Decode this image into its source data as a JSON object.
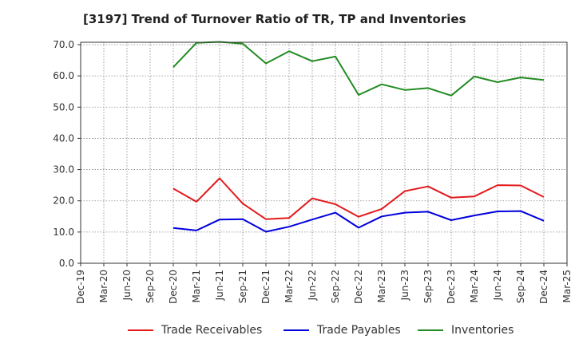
{
  "title": "[3197]  Trend of Turnover Ratio of TR, TP and Inventories",
  "chart_data": {
    "type": "line",
    "title": "[3197]  Trend of Turnover Ratio of TR, TP and Inventories",
    "xlabel": "",
    "ylabel": "",
    "ylim": [
      0,
      70
    ],
    "yticks": [
      "0.0",
      "10.0",
      "20.0",
      "30.0",
      "40.0",
      "50.0",
      "60.0",
      "70.0"
    ],
    "xticks": [
      "Dec-19",
      "Mar-20",
      "Jun-20",
      "Sep-20",
      "Dec-20",
      "Mar-21",
      "Jun-21",
      "Sep-21",
      "Dec-21",
      "Mar-22",
      "Jun-22",
      "Sep-22",
      "Dec-22",
      "Mar-23",
      "Jun-23",
      "Sep-23",
      "Dec-23",
      "Mar-24",
      "Jun-24",
      "Sep-24",
      "Dec-24",
      "Mar-25"
    ],
    "x": [
      "Dec-20",
      "Mar-21",
      "Jun-21",
      "Sep-21",
      "Dec-21",
      "Mar-22",
      "Jun-22",
      "Sep-22",
      "Dec-22",
      "Mar-23",
      "Jun-23",
      "Sep-23",
      "Dec-23",
      "Mar-24",
      "Jun-24",
      "Sep-24",
      "Dec-24"
    ],
    "grid": true,
    "legend_position": "bottom",
    "series": [
      {
        "name": "Trade Receivables",
        "color": "#e31a1c",
        "values": [
          23.9,
          19.7,
          27.2,
          19.1,
          14.1,
          14.5,
          20.8,
          18.9,
          14.9,
          17.4,
          23.1,
          24.6,
          21.0,
          21.4,
          25.0,
          24.9,
          21.2
        ]
      },
      {
        "name": "Trade Payables",
        "color": "#0000dd",
        "values": [
          11.3,
          10.5,
          14.0,
          14.1,
          10.1,
          11.7,
          14.0,
          16.2,
          11.4,
          15.0,
          16.2,
          16.5,
          13.8,
          15.3,
          16.6,
          16.7,
          13.6
        ]
      },
      {
        "name": "Inventories",
        "color": "#228b22",
        "values": [
          62.8,
          70.6,
          70.9,
          70.3,
          64.0,
          67.9,
          64.7,
          66.2,
          53.9,
          57.3,
          55.5,
          56.1,
          53.7,
          59.8,
          58.0,
          59.5,
          58.7
        ]
      }
    ]
  }
}
